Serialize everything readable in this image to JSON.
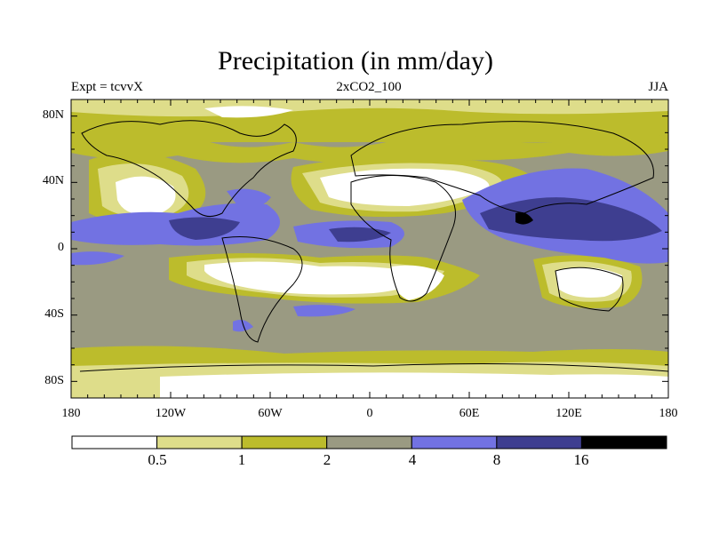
{
  "title": "Precipitation (in mm/day)",
  "experiment_label": "Expt = tcvvX",
  "run_label": "2xCO2_100",
  "season_label": "JJA",
  "lat_ticks": [
    "80N",
    "40N",
    "0",
    "40S",
    "80S"
  ],
  "lon_ticks": [
    "180",
    "120W",
    "60W",
    "0",
    "60E",
    "120E",
    "180"
  ],
  "colorbar": {
    "labels": [
      "0.5",
      "1",
      "2",
      "4",
      "8",
      "16"
    ],
    "colors": [
      "#ffffff",
      "#dedd8a",
      "#bcbc2c",
      "#9a9a82",
      "#7272e2",
      "#3e3e90",
      "#000000"
    ]
  }
}
